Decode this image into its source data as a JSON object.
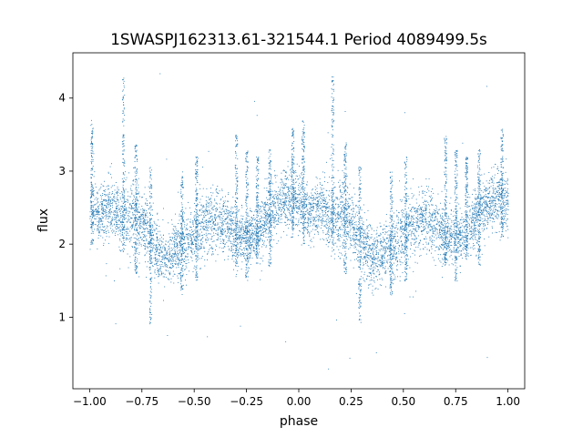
{
  "chart_data": {
    "type": "scatter",
    "title": "1SWASPJ162313.61-321544.1 Period 4089499.5s",
    "xlabel": "phase",
    "ylabel": "flux",
    "xlim": [
      -1.08,
      1.08
    ],
    "ylim": [
      0.02,
      4.62
    ],
    "xticks": [
      -1.0,
      -0.75,
      -0.5,
      -0.25,
      0.0,
      0.25,
      0.5,
      0.75,
      1.0
    ],
    "xtick_labels": [
      "−1.00",
      "−0.75",
      "−0.50",
      "−0.25",
      "0.00",
      "0.25",
      "0.50",
      "0.75",
      "1.00"
    ],
    "yticks": [
      1,
      2,
      3,
      4
    ],
    "ytick_labels": [
      "1",
      "2",
      "3",
      "4"
    ],
    "grid": false,
    "marker_color": "#1f77b4",
    "series": [
      {
        "x_range": [
          -1.0,
          1.0
        ],
        "profile": [
          {
            "phase": -1.0,
            "center": 2.55,
            "spread": 0.4
          },
          {
            "phase": -0.95,
            "center": 2.4,
            "spread": 0.3
          },
          {
            "phase": -0.9,
            "center": 2.55,
            "spread": 0.35
          },
          {
            "phase": -0.85,
            "center": 2.35,
            "spread": 0.4
          },
          {
            "phase": -0.8,
            "center": 2.4,
            "spread": 0.5
          },
          {
            "phase": -0.75,
            "center": 2.3,
            "spread": 0.4
          },
          {
            "phase": -0.7,
            "center": 2.05,
            "spread": 0.4
          },
          {
            "phase": -0.65,
            "center": 1.8,
            "spread": 0.35
          },
          {
            "phase": -0.6,
            "center": 1.9,
            "spread": 0.35
          },
          {
            "phase": -0.55,
            "center": 2.0,
            "spread": 0.4
          },
          {
            "phase": -0.5,
            "center": 2.15,
            "spread": 0.4
          },
          {
            "phase": -0.45,
            "center": 2.3,
            "spread": 0.4
          },
          {
            "phase": -0.4,
            "center": 2.35,
            "spread": 0.4
          },
          {
            "phase": -0.35,
            "center": 2.25,
            "spread": 0.35
          },
          {
            "phase": -0.3,
            "center": 2.1,
            "spread": 0.35
          },
          {
            "phase": -0.25,
            "center": 2.1,
            "spread": 0.3
          },
          {
            "phase": -0.2,
            "center": 2.15,
            "spread": 0.35
          },
          {
            "phase": -0.15,
            "center": 2.4,
            "spread": 0.4
          },
          {
            "phase": -0.1,
            "center": 2.55,
            "spread": 0.35
          },
          {
            "phase": -0.05,
            "center": 2.65,
            "spread": 0.35
          },
          {
            "phase": 0.0,
            "center": 2.6,
            "spread": 0.4
          },
          {
            "phase": 0.05,
            "center": 2.4,
            "spread": 0.3
          },
          {
            "phase": 0.1,
            "center": 2.55,
            "spread": 0.35
          },
          {
            "phase": 0.15,
            "center": 2.35,
            "spread": 0.4
          },
          {
            "phase": 0.2,
            "center": 2.4,
            "spread": 0.5
          },
          {
            "phase": 0.25,
            "center": 2.3,
            "spread": 0.4
          },
          {
            "phase": 0.3,
            "center": 2.05,
            "spread": 0.4
          },
          {
            "phase": 0.35,
            "center": 1.8,
            "spread": 0.35
          },
          {
            "phase": 0.4,
            "center": 1.9,
            "spread": 0.35
          },
          {
            "phase": 0.45,
            "center": 2.0,
            "spread": 0.4
          },
          {
            "phase": 0.5,
            "center": 2.15,
            "spread": 0.4
          },
          {
            "phase": 0.55,
            "center": 2.3,
            "spread": 0.4
          },
          {
            "phase": 0.6,
            "center": 2.35,
            "spread": 0.4
          },
          {
            "phase": 0.65,
            "center": 2.25,
            "spread": 0.35
          },
          {
            "phase": 0.7,
            "center": 2.1,
            "spread": 0.35
          },
          {
            "phase": 0.75,
            "center": 2.1,
            "spread": 0.3
          },
          {
            "phase": 0.8,
            "center": 2.15,
            "spread": 0.35
          },
          {
            "phase": 0.85,
            "center": 2.4,
            "spread": 0.4
          },
          {
            "phase": 0.9,
            "center": 2.55,
            "spread": 0.35
          },
          {
            "phase": 0.95,
            "center": 2.65,
            "spread": 0.35
          },
          {
            "phase": 1.0,
            "center": 2.6,
            "spread": 0.4
          }
        ],
        "spikes": [
          {
            "phase": -0.99,
            "low": 2.0,
            "high": 3.7
          },
          {
            "phase": -0.84,
            "low": 1.9,
            "high": 4.3
          },
          {
            "phase": -0.78,
            "low": 1.6,
            "high": 3.4
          },
          {
            "phase": -0.71,
            "low": 0.9,
            "high": 3.1
          },
          {
            "phase": -0.56,
            "low": 1.3,
            "high": 3.0
          },
          {
            "phase": -0.49,
            "low": 1.5,
            "high": 3.2
          },
          {
            "phase": -0.3,
            "low": 1.7,
            "high": 3.5
          },
          {
            "phase": -0.25,
            "low": 1.5,
            "high": 3.3
          },
          {
            "phase": -0.2,
            "low": 1.8,
            "high": 3.2
          },
          {
            "phase": -0.14,
            "low": 1.7,
            "high": 3.3
          },
          {
            "phase": -0.03,
            "low": 2.1,
            "high": 3.6
          },
          {
            "phase": 0.02,
            "low": 2.0,
            "high": 3.7
          },
          {
            "phase": 0.16,
            "low": 1.9,
            "high": 4.3
          },
          {
            "phase": 0.22,
            "low": 1.6,
            "high": 3.4
          },
          {
            "phase": 0.29,
            "low": 0.9,
            "high": 3.1
          },
          {
            "phase": 0.44,
            "low": 1.3,
            "high": 3.0
          },
          {
            "phase": 0.51,
            "low": 1.5,
            "high": 3.2
          },
          {
            "phase": 0.7,
            "low": 1.7,
            "high": 3.5
          },
          {
            "phase": 0.75,
            "low": 1.5,
            "high": 3.3
          },
          {
            "phase": 0.8,
            "low": 1.8,
            "high": 3.2
          },
          {
            "phase": 0.86,
            "low": 1.7,
            "high": 3.3
          },
          {
            "phase": 0.97,
            "low": 2.1,
            "high": 3.6
          }
        ],
        "points_per_unit_phase": 3400,
        "outlier_fraction": 0.008
      }
    ]
  }
}
